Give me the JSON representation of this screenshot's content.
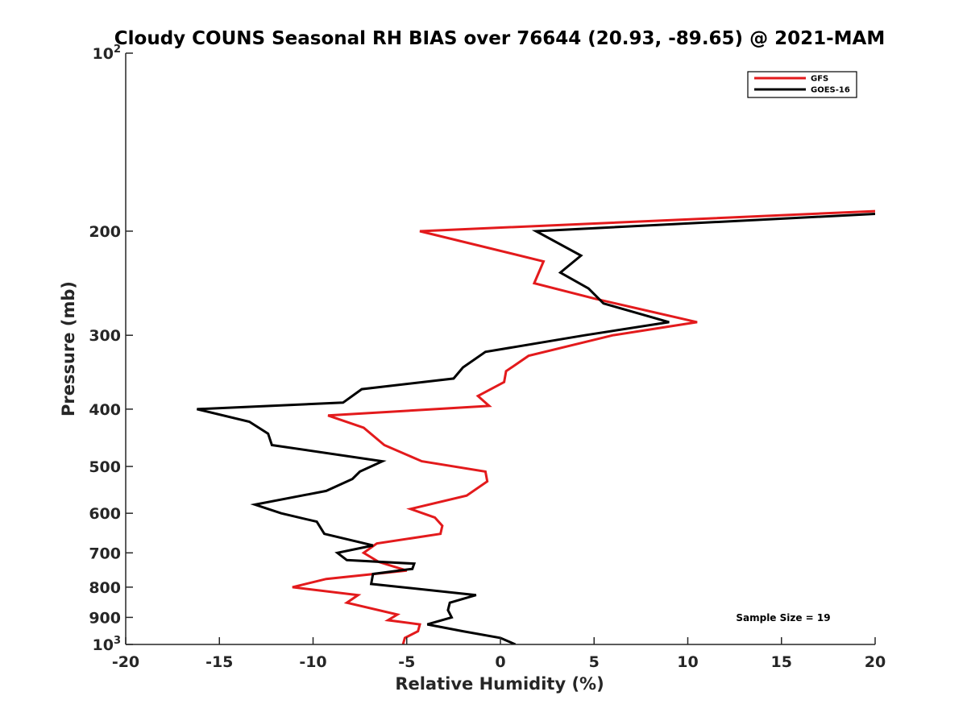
{
  "chart_data": {
    "type": "line",
    "title": "Cloudy COUNS Seasonal RH BIAS over 76644 (20.93, -89.65) @ 2021-MAM",
    "xlabel": "Relative Humidity (%)",
    "ylabel": "Pressure (mb)",
    "xlim": [
      -20,
      20
    ],
    "ylim": [
      100,
      1000
    ],
    "yscale": "log",
    "y_reversed": true,
    "x_ticks": [
      -20,
      -15,
      -10,
      -5,
      0,
      5,
      10,
      15,
      20
    ],
    "x_tick_labels": [
      "-20",
      "-15",
      "-10",
      "-5",
      "0",
      "5",
      "10",
      "15",
      "20"
    ],
    "y_ticks": [
      100,
      200,
      300,
      400,
      500,
      600,
      700,
      800,
      900,
      1000
    ],
    "y_tick_labels": [
      {
        "base": "10",
        "sup": "2"
      },
      {
        "base": "200",
        "sup": ""
      },
      {
        "base": "300",
        "sup": ""
      },
      {
        "base": "400",
        "sup": ""
      },
      {
        "base": "500",
        "sup": ""
      },
      {
        "base": "600",
        "sup": ""
      },
      {
        "base": "700",
        "sup": ""
      },
      {
        "base": "800",
        "sup": ""
      },
      {
        "base": "900",
        "sup": ""
      },
      {
        "base": "10",
        "sup": "3"
      }
    ],
    "legend_position": "top-right",
    "series": [
      {
        "name": "GFS",
        "color": "#e31a1c",
        "points": [
          [
            1000,
            -5.2
          ],
          [
            975,
            -5.1
          ],
          [
            950,
            -4.4
          ],
          [
            925,
            -4.3
          ],
          [
            910,
            -6.0
          ],
          [
            890,
            -5.5
          ],
          [
            850,
            -8.2
          ],
          [
            825,
            -7.6
          ],
          [
            800,
            -11.1
          ],
          [
            775,
            -9.3
          ],
          [
            750,
            -5.0
          ],
          [
            725,
            -6.5
          ],
          [
            700,
            -7.3
          ],
          [
            675,
            -6.6
          ],
          [
            650,
            -3.2
          ],
          [
            630,
            -3.1
          ],
          [
            610,
            -3.5
          ],
          [
            590,
            -4.8
          ],
          [
            560,
            -1.8
          ],
          [
            530,
            -0.7
          ],
          [
            510,
            -0.8
          ],
          [
            490,
            -4.2
          ],
          [
            460,
            -6.2
          ],
          [
            430,
            -7.3
          ],
          [
            410,
            -9.2
          ],
          [
            395,
            -0.6
          ],
          [
            380,
            -1.2
          ],
          [
            360,
            0.2
          ],
          [
            345,
            0.3
          ],
          [
            325,
            1.5
          ],
          [
            300,
            6.0
          ],
          [
            285,
            10.5
          ],
          [
            260,
            5.0
          ],
          [
            245,
            1.8
          ],
          [
            225,
            2.3
          ],
          [
            200,
            -4.3
          ],
          [
            185,
            20
          ]
        ]
      },
      {
        "name": "GOES-16",
        "color": "#000000",
        "points": [
          [
            1000,
            0.8
          ],
          [
            975,
            0.0
          ],
          [
            950,
            -2.0
          ],
          [
            925,
            -3.9
          ],
          [
            900,
            -2.6
          ],
          [
            875,
            -2.8
          ],
          [
            850,
            -2.7
          ],
          [
            825,
            -1.3
          ],
          [
            790,
            -6.9
          ],
          [
            760,
            -6.8
          ],
          [
            745,
            -4.7
          ],
          [
            730,
            -4.6
          ],
          [
            720,
            -8.2
          ],
          [
            700,
            -8.7
          ],
          [
            680,
            -6.8
          ],
          [
            650,
            -9.4
          ],
          [
            620,
            -9.8
          ],
          [
            600,
            -11.7
          ],
          [
            580,
            -13.1
          ],
          [
            550,
            -9.3
          ],
          [
            525,
            -7.9
          ],
          [
            510,
            -7.5
          ],
          [
            490,
            -6.3
          ],
          [
            460,
            -12.2
          ],
          [
            440,
            -12.4
          ],
          [
            420,
            -13.4
          ],
          [
            400,
            -16.2
          ],
          [
            390,
            -8.4
          ],
          [
            370,
            -7.4
          ],
          [
            355,
            -2.5
          ],
          [
            340,
            -2.0
          ],
          [
            320,
            -0.8
          ],
          [
            300,
            4.5
          ],
          [
            285,
            9.0
          ],
          [
            265,
            5.5
          ],
          [
            250,
            4.7
          ],
          [
            235,
            3.2
          ],
          [
            220,
            4.3
          ],
          [
            200,
            1.9
          ],
          [
            187,
            20
          ]
        ]
      }
    ],
    "annotation": "Sample Size = 19"
  }
}
